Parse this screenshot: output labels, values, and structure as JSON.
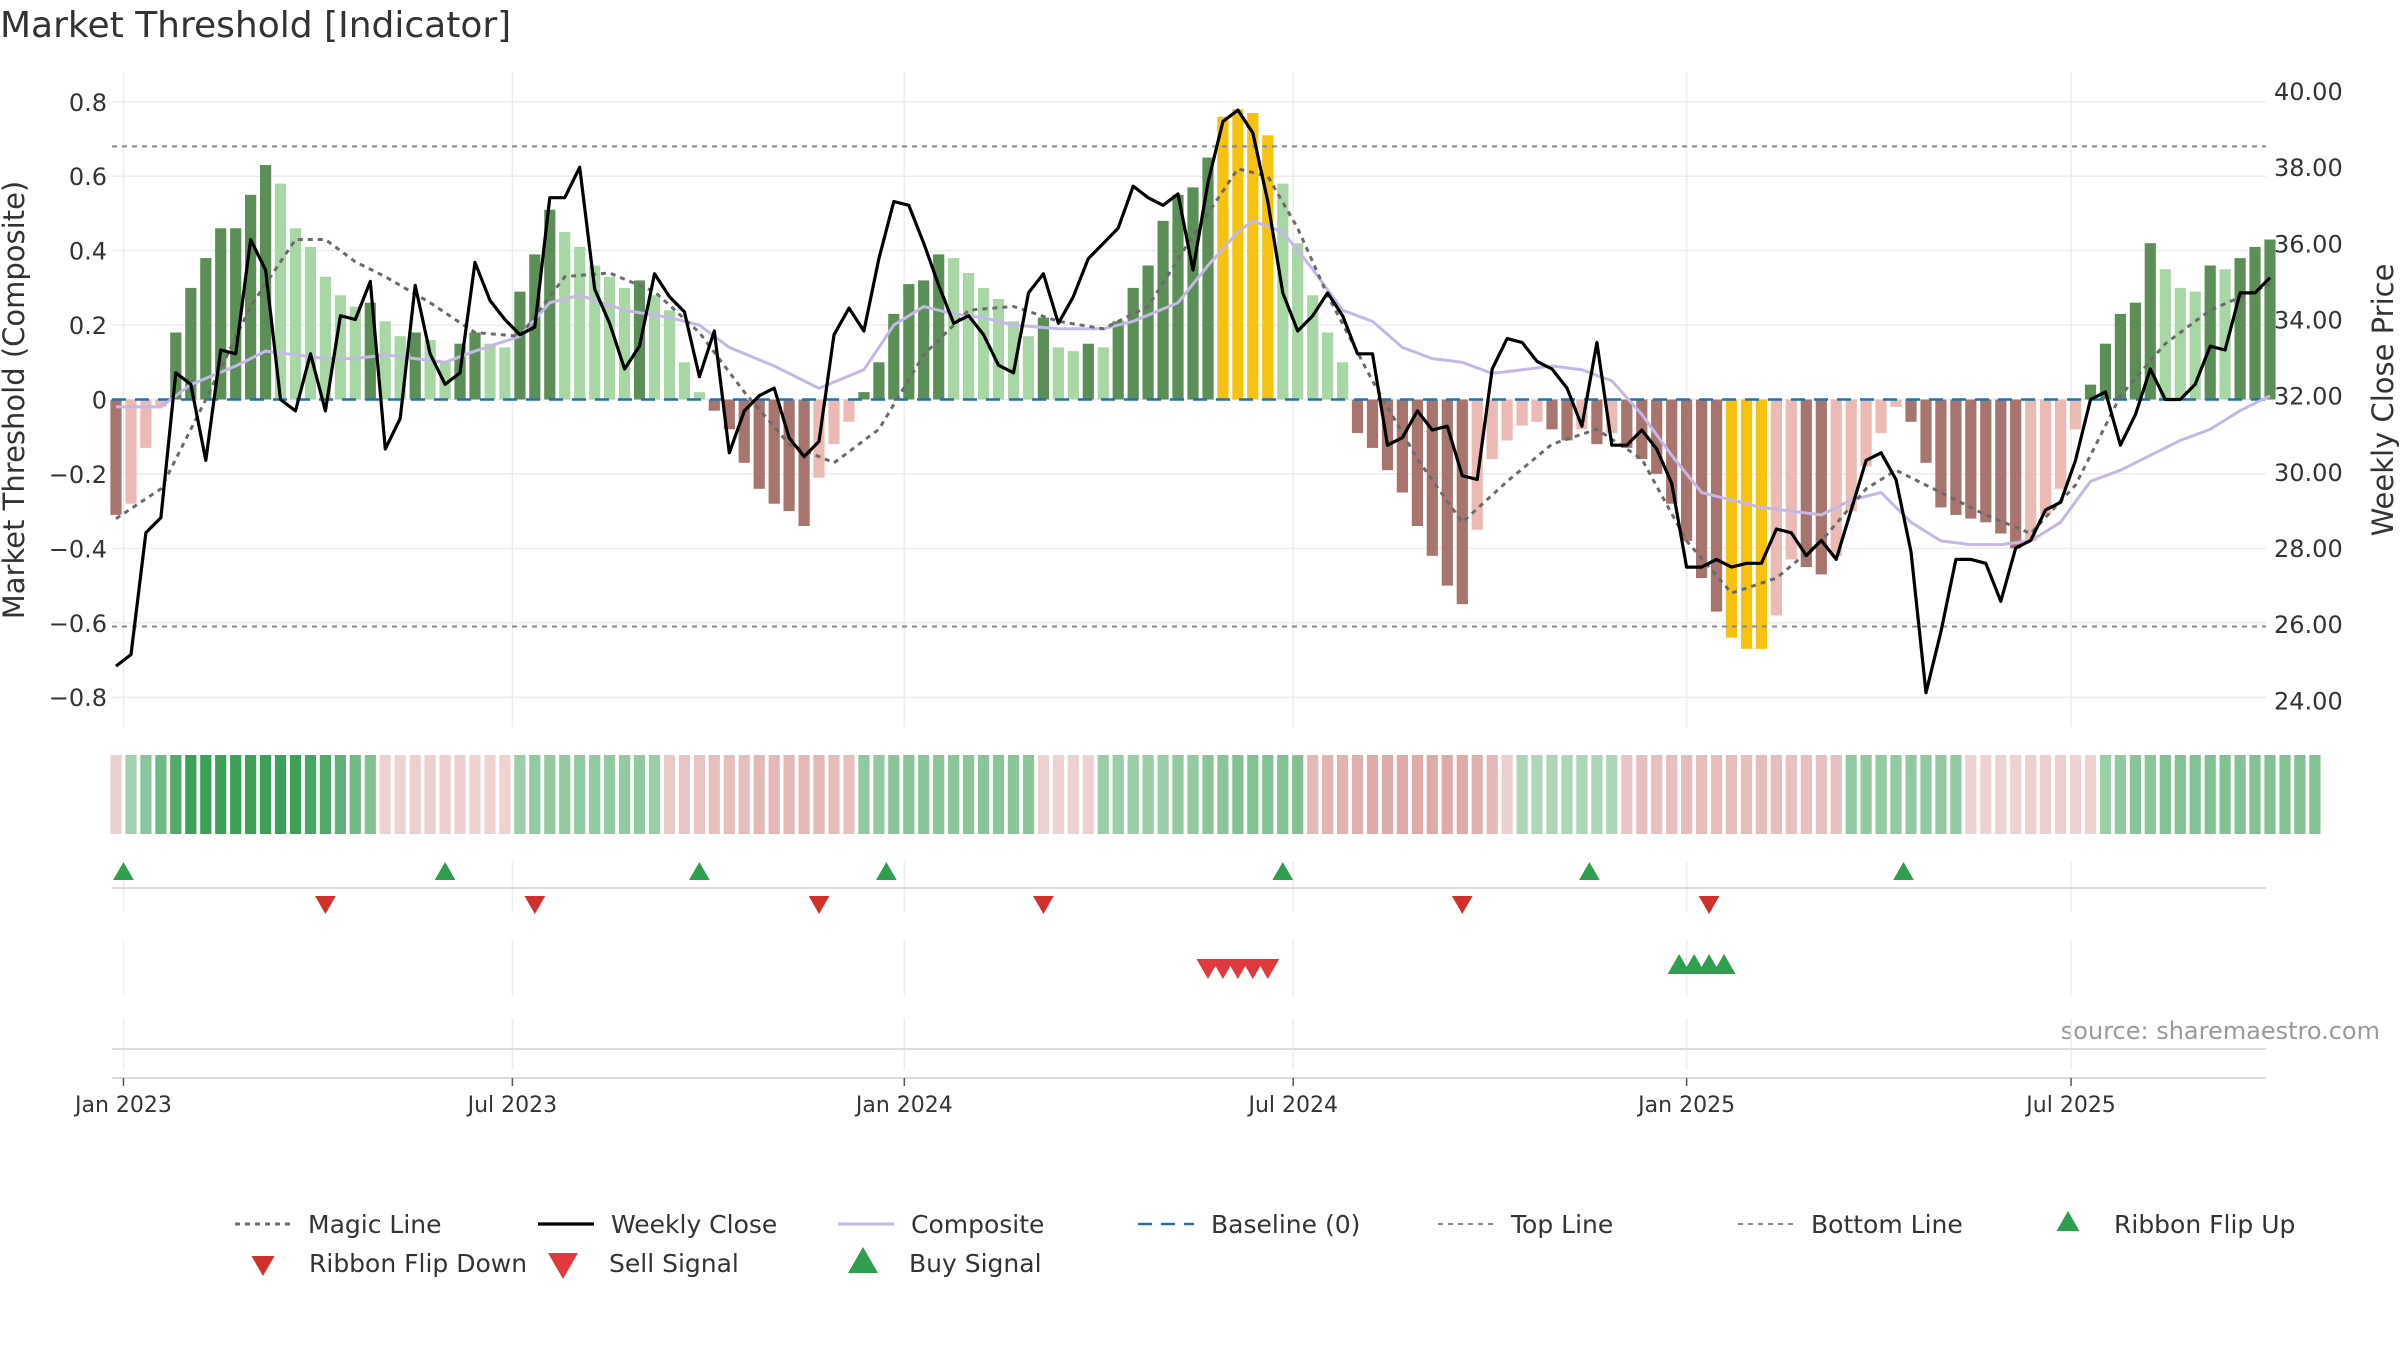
{
  "chart_data": {
    "type": "bar",
    "title": "Market Threshold [Indicator]",
    "ylabel_left": "Market Threshold (Composite)",
    "ylabel_right": "Weekly Close Price",
    "source": "source: sharemaestro.com",
    "xlim": [
      "2022-12-26",
      "2025-09-22"
    ],
    "ylim_left": [
      -0.88,
      0.88
    ],
    "ylim_right": [
      23.3,
      40.5
    ],
    "yticks_left": [
      {
        "value": 0.8,
        "label": "0.8"
      },
      {
        "value": 0.6,
        "label": "0.6"
      },
      {
        "value": 0.4,
        "label": "0.4"
      },
      {
        "value": 0.2,
        "label": "0.2"
      },
      {
        "value": 0,
        "label": "0"
      },
      {
        "value": -0.2,
        "label": "−0.2"
      },
      {
        "value": -0.4,
        "label": "−0.4"
      },
      {
        "value": -0.6,
        "label": "−0.6"
      },
      {
        "value": -0.8,
        "label": "−0.8"
      }
    ],
    "yticks_right": [
      {
        "value": 40,
        "label": "40.00"
      },
      {
        "value": 38,
        "label": "38.00"
      },
      {
        "value": 36,
        "label": "36.00"
      },
      {
        "value": 34,
        "label": "34.00"
      },
      {
        "value": 32,
        "label": "32.00"
      },
      {
        "value": 30,
        "label": "30.00"
      },
      {
        "value": 28,
        "label": "28.00"
      },
      {
        "value": 26,
        "label": "26.00"
      },
      {
        "value": 24,
        "label": "24.00"
      }
    ],
    "xticks": [
      {
        "week": 0.5,
        "label": "Jan 2023"
      },
      {
        "week": 26.5,
        "label": "Jul 2023"
      },
      {
        "week": 52.7,
        "label": "Jan 2024"
      },
      {
        "week": 78.7,
        "label": "Jul 2024"
      },
      {
        "week": 105,
        "label": "Jan 2025"
      },
      {
        "week": 130.7,
        "label": "Jul 2025"
      }
    ],
    "reference_lines": {
      "top": 0.68,
      "bottom": -0.61,
      "baseline": 0
    },
    "composite_bars": [
      -0.31,
      -0.28,
      -0.13,
      -0.02,
      0.18,
      0.3,
      0.38,
      0.46,
      0.46,
      0.55,
      0.63,
      0.58,
      0.46,
      0.41,
      0.33,
      0.28,
      0.25,
      0.26,
      0.21,
      0.17,
      0.18,
      0.16,
      0.1,
      0.15,
      0.18,
      0.15,
      0.14,
      0.29,
      0.39,
      0.51,
      0.45,
      0.41,
      0.36,
      0.33,
      0.3,
      0.32,
      0.28,
      0.24,
      0.1,
      0.02,
      -0.03,
      -0.08,
      -0.17,
      -0.24,
      -0.28,
      -0.3,
      -0.34,
      -0.21,
      -0.12,
      -0.06,
      0.02,
      0.1,
      0.23,
      0.31,
      0.32,
      0.39,
      0.38,
      0.34,
      0.3,
      0.27,
      0.21,
      0.17,
      0.22,
      0.14,
      0.13,
      0.15,
      0.14,
      0.21,
      0.3,
      0.36,
      0.48,
      0.55,
      0.57,
      0.65,
      0.76,
      0.78,
      0.77,
      0.71,
      0.58,
      0.42,
      0.28,
      0.18,
      0.1,
      -0.09,
      -0.13,
      -0.19,
      -0.25,
      -0.34,
      -0.42,
      -0.5,
      -0.55,
      -0.35,
      -0.16,
      -0.11,
      -0.07,
      -0.06,
      -0.08,
      -0.11,
      -0.08,
      -0.12,
      -0.09,
      -0.13,
      -0.16,
      -0.2,
      -0.28,
      -0.38,
      -0.48,
      -0.57,
      -0.64,
      -0.67,
      -0.67,
      -0.58,
      -0.43,
      -0.45,
      -0.47,
      -0.42,
      -0.3,
      -0.18,
      -0.09,
      -0.02,
      -0.06,
      -0.17,
      -0.29,
      -0.31,
      -0.32,
      -0.33,
      -0.36,
      -0.4,
      -0.38,
      -0.31,
      -0.24,
      -0.08,
      0.04,
      0.15,
      0.23,
      0.26,
      0.42,
      0.35,
      0.3,
      0.29,
      0.36,
      0.35,
      0.38,
      0.41,
      0.43
    ],
    "bar_colors": {
      "strong_pos": "#5c8f58",
      "weak_pos": "#a9d6a5",
      "strong_neg": "#a8746e",
      "weak_neg": "#ebbab5",
      "extreme": "#f7c10f"
    },
    "weekly_close_anchors": [
      [
        0,
        24.9
      ],
      [
        1,
        25.2
      ],
      [
        2,
        28.4
      ],
      [
        3,
        28.8
      ],
      [
        4,
        32.6
      ],
      [
        5,
        32.3
      ],
      [
        6,
        30.3
      ],
      [
        7,
        33.2
      ],
      [
        8,
        33.1
      ],
      [
        9,
        36.1
      ],
      [
        10,
        35.3
      ],
      [
        11,
        31.9
      ],
      [
        12,
        31.6
      ],
      [
        13,
        33.1
      ],
      [
        14,
        31.6
      ],
      [
        15,
        34.1
      ],
      [
        16,
        34.0
      ],
      [
        17,
        35.0
      ],
      [
        18,
        30.6
      ],
      [
        19,
        31.4
      ],
      [
        20,
        34.9
      ],
      [
        21,
        33.1
      ],
      [
        22,
        32.3
      ],
      [
        23,
        32.6
      ],
      [
        24,
        35.5
      ],
      [
        25,
        34.5
      ],
      [
        26,
        34.0
      ],
      [
        27,
        33.6
      ],
      [
        28,
        33.8
      ],
      [
        29,
        37.2
      ],
      [
        30,
        37.2
      ],
      [
        31,
        38.0
      ],
      [
        32,
        34.8
      ],
      [
        33,
        33.9
      ],
      [
        34,
        32.7
      ],
      [
        35,
        33.3
      ],
      [
        36,
        35.2
      ],
      [
        37,
        34.6
      ],
      [
        38,
        34.2
      ],
      [
        39,
        32.5
      ],
      [
        40,
        33.7
      ],
      [
        41,
        30.5
      ],
      [
        42,
        31.6
      ],
      [
        43,
        32.0
      ],
      [
        44,
        32.2
      ],
      [
        45,
        30.9
      ],
      [
        46,
        30.4
      ],
      [
        47,
        30.8
      ],
      [
        48,
        33.6
      ],
      [
        49,
        34.3
      ],
      [
        50,
        33.7
      ],
      [
        51,
        35.6
      ],
      [
        52,
        37.1
      ],
      [
        53,
        37.0
      ],
      [
        54,
        36.0
      ],
      [
        55,
        34.9
      ],
      [
        56,
        33.9
      ],
      [
        57,
        34.1
      ],
      [
        58,
        33.6
      ],
      [
        59,
        32.8
      ],
      [
        60,
        32.6
      ],
      [
        61,
        34.7
      ],
      [
        62,
        35.2
      ],
      [
        63,
        33.9
      ],
      [
        64,
        34.6
      ],
      [
        65,
        35.6
      ],
      [
        66,
        36.0
      ],
      [
        67,
        36.4
      ],
      [
        68,
        37.5
      ],
      [
        69,
        37.2
      ],
      [
        70,
        37.0
      ],
      [
        71,
        37.3
      ],
      [
        72,
        35.3
      ],
      [
        73,
        37.6
      ],
      [
        74,
        39.2
      ],
      [
        75,
        39.5
      ],
      [
        76,
        38.9
      ],
      [
        77,
        37.1
      ],
      [
        78,
        34.7
      ],
      [
        79,
        33.7
      ],
      [
        80,
        34.1
      ],
      [
        81,
        34.7
      ],
      [
        82,
        34.1
      ],
      [
        83,
        33.1
      ],
      [
        84,
        33.1
      ],
      [
        85,
        30.7
      ],
      [
        86,
        30.9
      ],
      [
        87,
        31.6
      ],
      [
        88,
        31.1
      ],
      [
        89,
        31.2
      ],
      [
        90,
        29.9
      ],
      [
        91,
        29.8
      ],
      [
        92,
        32.7
      ],
      [
        93,
        33.5
      ],
      [
        94,
        33.4
      ],
      [
        95,
        32.9
      ],
      [
        96,
        32.7
      ],
      [
        97,
        32.2
      ],
      [
        98,
        31.2
      ],
      [
        99,
        33.4
      ],
      [
        100,
        30.7
      ],
      [
        101,
        30.7
      ],
      [
        102,
        31.1
      ],
      [
        103,
        30.6
      ],
      [
        104,
        29.7
      ],
      [
        105,
        27.5
      ],
      [
        106,
        27.5
      ],
      [
        107,
        27.7
      ],
      [
        108,
        27.5
      ],
      [
        109,
        27.6
      ],
      [
        110,
        27.6
      ],
      [
        111,
        28.5
      ],
      [
        112,
        28.4
      ],
      [
        113,
        27.8
      ],
      [
        114,
        28.2
      ],
      [
        115,
        27.7
      ],
      [
        116,
        29.0
      ],
      [
        117,
        30.3
      ],
      [
        118,
        30.5
      ],
      [
        119,
        29.8
      ],
      [
        120,
        27.9
      ],
      [
        121,
        24.2
      ],
      [
        122,
        25.8
      ],
      [
        123,
        27.7
      ],
      [
        124,
        27.7
      ],
      [
        125,
        27.6
      ],
      [
        126,
        26.6
      ],
      [
        127,
        28.0
      ],
      [
        128,
        28.2
      ],
      [
        129,
        29.0
      ],
      [
        130,
        29.2
      ],
      [
        131,
        30.3
      ],
      [
        132,
        31.9
      ],
      [
        133,
        32.1
      ],
      [
        134,
        30.7
      ],
      [
        135,
        31.5
      ],
      [
        136,
        32.7
      ],
      [
        137,
        31.9
      ],
      [
        138,
        31.9
      ],
      [
        139,
        32.3
      ],
      [
        140,
        33.3
      ],
      [
        141,
        33.2
      ],
      [
        142,
        34.7
      ],
      [
        143,
        34.7
      ],
      [
        144,
        35.1
      ]
    ],
    "magic_line_anchors": [
      [
        0,
        -0.32
      ],
      [
        3,
        -0.24
      ],
      [
        6,
        0.0
      ],
      [
        9,
        0.25
      ],
      [
        12,
        0.43
      ],
      [
        14,
        0.43
      ],
      [
        16,
        0.37
      ],
      [
        18,
        0.33
      ],
      [
        21,
        0.26
      ],
      [
        24,
        0.18
      ],
      [
        27,
        0.17
      ],
      [
        30,
        0.33
      ],
      [
        33,
        0.34
      ],
      [
        36,
        0.29
      ],
      [
        39,
        0.18
      ],
      [
        42,
        0.02
      ],
      [
        45,
        -0.12
      ],
      [
        48,
        -0.17
      ],
      [
        51,
        -0.08
      ],
      [
        54,
        0.12
      ],
      [
        57,
        0.24
      ],
      [
        60,
        0.25
      ],
      [
        63,
        0.21
      ],
      [
        66,
        0.19
      ],
      [
        69,
        0.25
      ],
      [
        72,
        0.44
      ],
      [
        75,
        0.62
      ],
      [
        77,
        0.6
      ],
      [
        79,
        0.46
      ],
      [
        81,
        0.28
      ],
      [
        84,
        0.05
      ],
      [
        87,
        -0.16
      ],
      [
        90,
        -0.33
      ],
      [
        93,
        -0.22
      ],
      [
        96,
        -0.12
      ],
      [
        99,
        -0.08
      ],
      [
        102,
        -0.16
      ],
      [
        105,
        -0.38
      ],
      [
        108,
        -0.52
      ],
      [
        111,
        -0.48
      ],
      [
        114,
        -0.38
      ],
      [
        117,
        -0.24
      ],
      [
        119,
        -0.19
      ],
      [
        122,
        -0.25
      ],
      [
        125,
        -0.31
      ],
      [
        128,
        -0.36
      ],
      [
        131,
        -0.23
      ],
      [
        134,
        0.01
      ],
      [
        137,
        0.15
      ],
      [
        140,
        0.24
      ],
      [
        144,
        0.31
      ]
    ],
    "composite_line_anchors": [
      [
        0,
        -0.02
      ],
      [
        3,
        -0.02
      ],
      [
        5,
        0.04
      ],
      [
        8,
        0.09
      ],
      [
        10,
        0.13
      ],
      [
        12,
        0.12
      ],
      [
        14,
        0.11
      ],
      [
        16,
        0.11
      ],
      [
        18,
        0.12
      ],
      [
        20,
        0.11
      ],
      [
        22,
        0.1
      ],
      [
        24,
        0.13
      ],
      [
        27,
        0.17
      ],
      [
        29,
        0.26
      ],
      [
        31,
        0.28
      ],
      [
        34,
        0.24
      ],
      [
        37,
        0.22
      ],
      [
        39,
        0.2
      ],
      [
        41,
        0.14
      ],
      [
        44,
        0.09
      ],
      [
        47,
        0.03
      ],
      [
        50,
        0.08
      ],
      [
        52,
        0.2
      ],
      [
        54,
        0.25
      ],
      [
        56,
        0.23
      ],
      [
        58,
        0.22
      ],
      [
        60,
        0.2
      ],
      [
        63,
        0.19
      ],
      [
        66,
        0.19
      ],
      [
        68,
        0.21
      ],
      [
        71,
        0.26
      ],
      [
        73,
        0.36
      ],
      [
        75,
        0.45
      ],
      [
        76,
        0.48
      ],
      [
        78,
        0.45
      ],
      [
        80,
        0.35
      ],
      [
        82,
        0.24
      ],
      [
        84,
        0.21
      ],
      [
        86,
        0.14
      ],
      [
        88,
        0.11
      ],
      [
        90,
        0.1
      ],
      [
        92,
        0.07
      ],
      [
        94,
        0.08
      ],
      [
        96,
        0.09
      ],
      [
        98,
        0.08
      ],
      [
        100,
        0.05
      ],
      [
        102,
        -0.04
      ],
      [
        104,
        -0.15
      ],
      [
        106,
        -0.25
      ],
      [
        108,
        -0.27
      ],
      [
        110,
        -0.29
      ],
      [
        112,
        -0.3
      ],
      [
        114,
        -0.31
      ],
      [
        116,
        -0.27
      ],
      [
        118,
        -0.25
      ],
      [
        120,
        -0.33
      ],
      [
        122,
        -0.38
      ],
      [
        124,
        -0.39
      ],
      [
        126,
        -0.39
      ],
      [
        128,
        -0.38
      ],
      [
        130,
        -0.33
      ],
      [
        132,
        -0.22
      ],
      [
        134,
        -0.19
      ],
      [
        136,
        -0.15
      ],
      [
        138,
        -0.11
      ],
      [
        140,
        -0.08
      ],
      [
        142,
        -0.03
      ],
      [
        144,
        0.01
      ]
    ],
    "ribbon_strength": [
      -0.35,
      0.4,
      0.55,
      0.7,
      0.9,
      1,
      1,
      1,
      1,
      1,
      1,
      1,
      1,
      0.95,
      0.9,
      0.8,
      0.7,
      0.6,
      -0.3,
      -0.3,
      -0.35,
      -0.35,
      -0.35,
      -0.35,
      -0.3,
      -0.3,
      -0.3,
      0.45,
      0.5,
      0.5,
      0.5,
      0.5,
      0.5,
      0.5,
      0.5,
      0.5,
      0.45,
      -0.4,
      -0.45,
      -0.45,
      -0.5,
      -0.55,
      -0.55,
      -0.6,
      -0.6,
      -0.6,
      -0.6,
      -0.6,
      -0.55,
      -0.5,
      0.5,
      0.5,
      0.55,
      0.55,
      0.55,
      0.55,
      0.55,
      0.55,
      0.55,
      0.55,
      0.55,
      0.55,
      -0.3,
      -0.3,
      -0.3,
      -0.3,
      0.45,
      0.45,
      0.45,
      0.45,
      0.45,
      0.5,
      0.5,
      0.55,
      0.55,
      0.6,
      0.6,
      0.6,
      0.6,
      0.6,
      -0.6,
      -0.65,
      -0.65,
      -0.7,
      -0.75,
      -0.75,
      -0.75,
      -0.75,
      -0.75,
      -0.75,
      -0.75,
      -0.7,
      -0.6,
      -0.35,
      0.35,
      0.35,
      0.35,
      0.35,
      0.35,
      0.35,
      0.35,
      -0.45,
      -0.5,
      -0.5,
      -0.5,
      -0.55,
      -0.55,
      -0.55,
      -0.55,
      -0.55,
      -0.55,
      -0.55,
      -0.5,
      -0.5,
      -0.5,
      -0.5,
      0.5,
      0.5,
      0.5,
      0.5,
      0.5,
      0.5,
      0.5,
      0.5,
      -0.3,
      -0.3,
      -0.3,
      -0.3,
      -0.35,
      -0.35,
      -0.35,
      -0.3,
      -0.3,
      0.45,
      0.5,
      0.55,
      0.55,
      0.6,
      0.6,
      0.6,
      0.6,
      0.6,
      0.6,
      0.6,
      0.6,
      0.6,
      0.6,
      0.6
    ],
    "ribbon_flip_up_weeks": [
      0.5,
      22,
      39,
      51.5,
      78,
      98.5,
      119.5
    ],
    "ribbon_flip_down_weeks": [
      14,
      28,
      47,
      62,
      90,
      106.5
    ],
    "sell_signal_weeks": [
      73,
      74,
      75,
      76,
      77
    ],
    "buy_signal_weeks": [
      104.5,
      105.5,
      106.5,
      107.5
    ],
    "legend": [
      {
        "key": "magic",
        "label": "Magic Line"
      },
      {
        "key": "close",
        "label": "Weekly Close"
      },
      {
        "key": "composite",
        "label": "Composite"
      },
      {
        "key": "baseline",
        "label": "Baseline (0)"
      },
      {
        "key": "top",
        "label": "Top Line"
      },
      {
        "key": "bottom",
        "label": "Bottom Line"
      },
      {
        "key": "flipup",
        "label": "Ribbon Flip Up"
      },
      {
        "key": "flipdown",
        "label": "Ribbon Flip Down"
      },
      {
        "key": "sell",
        "label": "Sell Signal"
      },
      {
        "key": "buy",
        "label": "Buy Signal"
      }
    ],
    "series_colors": {
      "close": "#000000",
      "magic": "#6b6b6b",
      "composite": "#c5b8e8",
      "baseline": "#2b6f9e",
      "ref": "#888888",
      "flip_up": "#2e9e4f",
      "flip_down": "#d0312d",
      "sell": "#e03a3e",
      "buy": "#2e9e4f"
    }
  }
}
